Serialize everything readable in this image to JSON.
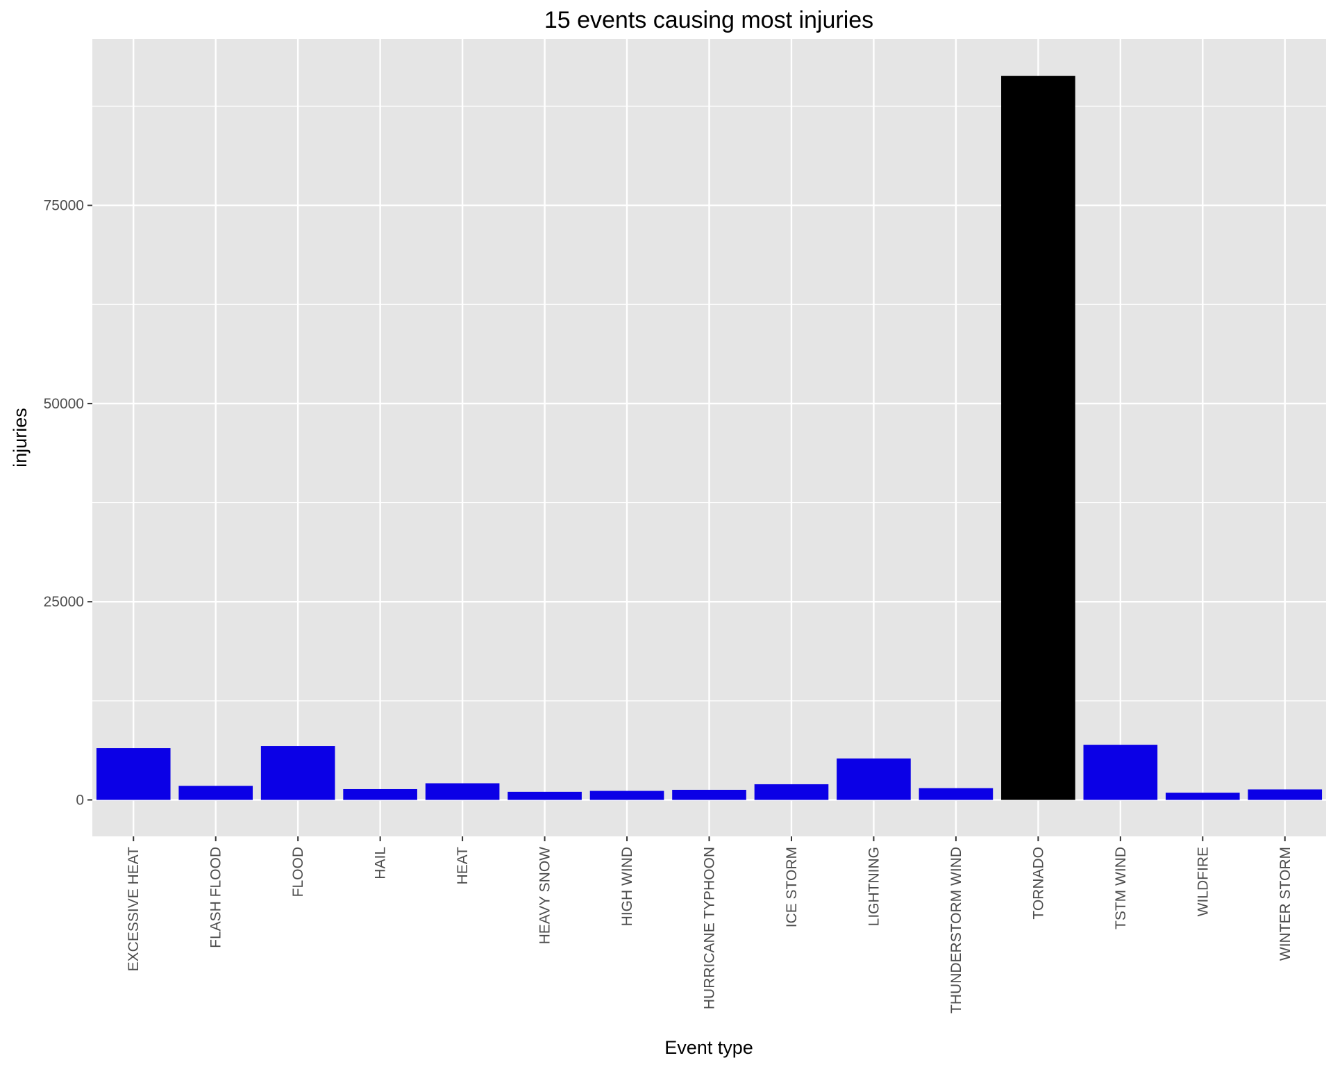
{
  "chart_data": {
    "type": "bar",
    "title": "15 events causing most injuries",
    "xlabel": "Event type",
    "ylabel": "injuries",
    "categories": [
      "EXCESSIVE HEAT",
      "FLASH FLOOD",
      "FLOOD",
      "HAIL",
      "HEAT",
      "HEAVY SNOW",
      "HIGH WIND",
      "HURRICANE TYPHOON",
      "ICE STORM",
      "LIGHTNING",
      "THUNDERSTORM WIND",
      "TORNADO",
      "TSTM WIND",
      "WILDFIRE",
      "WINTER STORM"
    ],
    "values": [
      6525,
      1777,
      6789,
      1361,
      2100,
      1021,
      1137,
      1275,
      1975,
      5230,
      1488,
      91346,
      6957,
      911,
      1321
    ],
    "ylim": [
      -4600,
      96000
    ],
    "yticks": [
      0,
      25000,
      50000,
      75000
    ],
    "ytick_labels": [
      "0",
      "25000",
      "50000",
      "75000"
    ],
    "grid": true,
    "legend": "none",
    "colors": {
      "panel_background": "#e5e5e5",
      "grid": "#ffffff",
      "bar": "#0b00e6",
      "highlight_bar": "#000000",
      "tick_text": "#4d4d4d",
      "tick_mark": "#333333"
    },
    "highlight_category": "TORNADO"
  }
}
